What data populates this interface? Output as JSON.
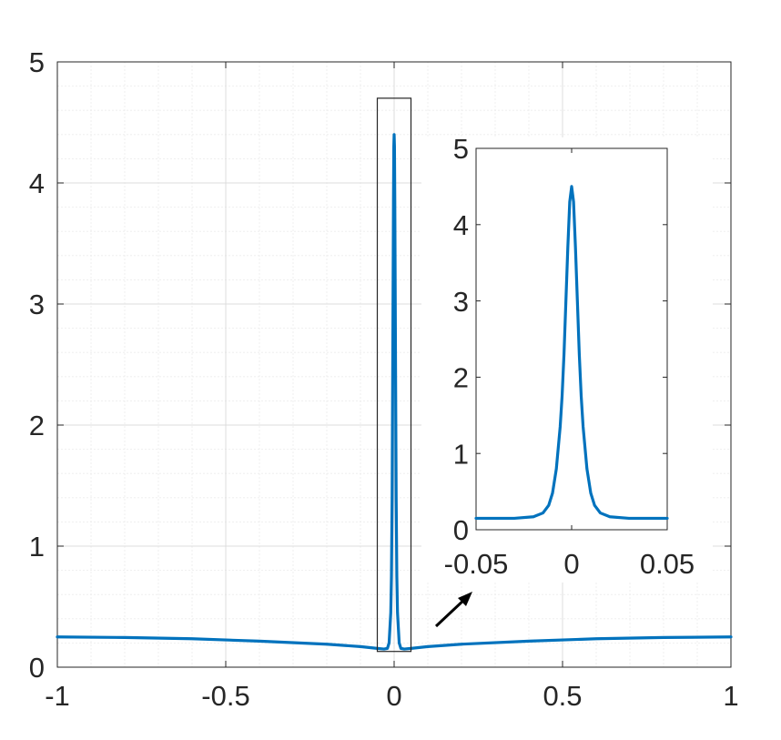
{
  "chart_data": [
    {
      "id": "main",
      "type": "line",
      "title": "",
      "xlabel": "",
      "ylabel": "",
      "xlim": [
        -1,
        1
      ],
      "ylim": [
        0,
        5
      ],
      "xticks": [
        -1,
        -0.5,
        0,
        0.5,
        1
      ],
      "xtick_labels": [
        "-1",
        "-0.5",
        "0",
        "0.5",
        "1"
      ],
      "yticks": [
        0,
        1,
        2,
        3,
        4,
        5
      ],
      "ytick_labels": [
        "0",
        "1",
        "2",
        "3",
        "4",
        "5"
      ],
      "grid": true,
      "minor_grid": true,
      "series": [
        {
          "color": "#0072BD",
          "x": [
            -1,
            -0.8,
            -0.6,
            -0.4,
            -0.2,
            -0.1,
            -0.05,
            -0.03,
            -0.02,
            -0.015,
            -0.01,
            -0.008,
            -0.006,
            -0.004,
            -0.002,
            -0.001,
            0,
            0.001,
            0.002,
            0.004,
            0.006,
            0.008,
            0.01,
            0.015,
            0.02,
            0.03,
            0.05,
            0.1,
            0.2,
            0.4,
            0.6,
            0.8,
            1
          ],
          "y": [
            0.25,
            0.245,
            0.235,
            0.215,
            0.19,
            0.17,
            0.155,
            0.15,
            0.155,
            0.2,
            0.45,
            0.75,
            1.4,
            2.6,
            3.85,
            4.3,
            4.4,
            4.3,
            3.85,
            2.6,
            1.4,
            0.75,
            0.45,
            0.2,
            0.155,
            0.15,
            0.155,
            0.17,
            0.19,
            0.215,
            0.235,
            0.245,
            0.25
          ]
        }
      ],
      "zoom_box": {
        "x": [
          -0.05,
          0.05
        ],
        "y": [
          0.13,
          4.7
        ]
      }
    },
    {
      "id": "inset",
      "type": "line",
      "title": "",
      "xlabel": "",
      "ylabel": "",
      "xlim": [
        -0.05,
        0.05
      ],
      "ylim": [
        0,
        5
      ],
      "xticks": [
        -0.05,
        0,
        0.05
      ],
      "xtick_labels": [
        "-0.05",
        "0",
        "0.05"
      ],
      "yticks": [
        0,
        1,
        2,
        3,
        4,
        5
      ],
      "ytick_labels": [
        "0",
        "1",
        "2",
        "3",
        "4",
        "5"
      ],
      "grid": false,
      "series": [
        {
          "color": "#0072BD",
          "x": [
            -0.05,
            -0.03,
            -0.02,
            -0.015,
            -0.012,
            -0.01,
            -0.008,
            -0.006,
            -0.005,
            -0.004,
            -0.003,
            -0.002,
            -0.001,
            0,
            0.001,
            0.002,
            0.003,
            0.004,
            0.005,
            0.006,
            0.008,
            0.01,
            0.012,
            0.015,
            0.02,
            0.03,
            0.05
          ],
          "y": [
            0.15,
            0.15,
            0.17,
            0.22,
            0.32,
            0.48,
            0.8,
            1.35,
            1.75,
            2.3,
            3.0,
            3.7,
            4.3,
            4.5,
            4.3,
            3.7,
            3.0,
            2.3,
            1.75,
            1.35,
            0.8,
            0.48,
            0.32,
            0.22,
            0.17,
            0.15,
            0.15
          ]
        }
      ]
    }
  ],
  "style": {
    "line_color": "#0072BD",
    "axis_color": "#262626",
    "grid_color": "#dcdcdc"
  }
}
